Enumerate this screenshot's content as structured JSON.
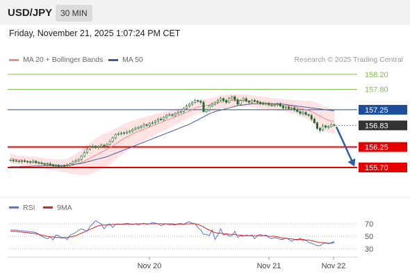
{
  "header": {
    "symbol": "USD/JPY",
    "timeframe": "30 MIN"
  },
  "datetime": "Friday, November 21, 2025 1:07:24 PM CET",
  "legend": {
    "bollinger_label": "MA 20 + Bollinger Bands",
    "ma50_label": "MA 50",
    "credit": "Research © 2025 Trading Central"
  },
  "rsi_legend": {
    "rsi_label": "RSI",
    "ma_label": "9MA"
  },
  "colors": {
    "bollinger": "#f08a8a",
    "bollinger_band": "#fde3e3",
    "ma50": "#3f5e99",
    "candle": "#1f6e2e",
    "resistance_green": "#7fbf4f",
    "current_price": "#333333",
    "support_red": "#e60000",
    "pivot_blue": "#1d4e9e",
    "arrow": "#2a5caa",
    "rsi": "#5577dd",
    "rsi_ma": "#dd2222"
  },
  "chart_data": [
    {
      "type": "candlestick",
      "symbol": "USD/JPY",
      "timeframe": "30 MIN",
      "ylim": [
        155.55,
        158.25
      ],
      "x_tick_labels": [
        "Nov 20",
        "Nov 21",
        "Nov 22"
      ],
      "price_levels": [
        {
          "value": 158.2,
          "label": "158.20",
          "role": "resistance"
        },
        {
          "value": 157.8,
          "label": "157.80",
          "role": "resistance"
        },
        {
          "value": 157.25,
          "label": "157.25",
          "role": "pivot"
        },
        {
          "value": 156.83,
          "label": "156.83",
          "role": "last_price"
        },
        {
          "value": 156.25,
          "label": "156.25",
          "role": "support"
        },
        {
          "value": 155.7,
          "label": "155.70",
          "role": "support"
        }
      ],
      "forecast_arrow": {
        "from": 156.83,
        "to": 155.7
      },
      "close_prices": [
        155.9,
        155.88,
        155.87,
        155.86,
        155.88,
        155.86,
        155.85,
        155.84,
        155.87,
        155.83,
        155.82,
        155.8,
        155.78,
        155.8,
        155.77,
        155.74,
        155.75,
        155.72,
        155.73,
        155.74,
        155.76,
        155.8,
        155.85,
        155.88,
        155.92,
        156.0,
        156.1,
        156.2,
        156.25,
        156.27,
        156.24,
        156.26,
        156.3,
        156.28,
        156.32,
        156.4,
        156.5,
        156.58,
        156.6,
        156.63,
        156.62,
        156.65,
        156.68,
        156.72,
        156.75,
        156.78,
        156.8,
        156.85,
        156.83,
        156.88,
        156.9,
        156.95,
        157.0,
        156.98,
        157.05,
        157.1,
        157.12,
        157.1,
        157.15,
        157.18,
        157.2,
        157.28,
        157.35,
        157.4,
        157.45,
        157.5,
        157.48,
        157.45,
        157.2,
        157.25,
        157.35,
        157.4,
        157.45,
        157.5,
        157.55,
        157.5,
        157.45,
        157.55,
        157.6,
        157.52,
        157.4,
        157.5,
        157.55,
        157.48,
        157.45,
        157.5,
        157.48,
        157.45,
        157.42,
        157.4,
        157.42,
        157.38,
        157.36,
        157.38,
        157.4,
        157.35,
        157.3,
        157.32,
        157.28,
        157.3,
        157.25,
        157.2,
        157.15,
        157.18,
        157.12,
        157.1,
        157.0,
        156.9,
        156.75,
        156.7,
        156.82,
        156.78,
        156.8,
        156.85,
        156.83
      ],
      "ma20": [
        155.95,
        155.93,
        155.91,
        155.9,
        155.89,
        155.88,
        155.87,
        155.86,
        155.85,
        155.84,
        155.83,
        155.82,
        155.81,
        155.8,
        155.79,
        155.78,
        155.77,
        155.76,
        155.75,
        155.75,
        155.75,
        155.76,
        155.77,
        155.79,
        155.81,
        155.84,
        155.87,
        155.91,
        155.95,
        155.99,
        156.03,
        156.07,
        156.11,
        156.15,
        156.19,
        156.23,
        156.28,
        156.33,
        156.38,
        156.43,
        156.48,
        156.52,
        156.56,
        156.6,
        156.64,
        156.67,
        156.7,
        156.73,
        156.76,
        156.79,
        156.82,
        156.85,
        156.88,
        156.91,
        156.94,
        156.97,
        157.0,
        157.03,
        157.06,
        157.09,
        157.12,
        157.15,
        157.18,
        157.21,
        157.25,
        157.29,
        157.32,
        157.34,
        157.35,
        157.36,
        157.38,
        157.4,
        157.42,
        157.44,
        157.46,
        157.47,
        157.48,
        157.49,
        157.5,
        157.5,
        157.5,
        157.5,
        157.5,
        157.5,
        157.49,
        157.48,
        157.47,
        157.46,
        157.45,
        157.44,
        157.43,
        157.42,
        157.41,
        157.4,
        157.39,
        157.38,
        157.37,
        157.36,
        157.35,
        157.34,
        157.33,
        157.31,
        157.29,
        157.27,
        157.25,
        157.23,
        157.2,
        157.16,
        157.12,
        157.08,
        157.04,
        157.0,
        156.97,
        156.95,
        156.93
      ],
      "ma50": [
        155.72,
        155.72,
        155.72,
        155.72,
        155.73,
        155.73,
        155.73,
        155.73,
        155.74,
        155.74,
        155.74,
        155.74,
        155.75,
        155.75,
        155.75,
        155.75,
        155.75,
        155.75,
        155.75,
        155.76,
        155.76,
        155.77,
        155.78,
        155.79,
        155.8,
        155.81,
        155.83,
        155.85,
        155.87,
        155.89,
        155.91,
        155.93,
        155.95,
        155.97,
        155.99,
        156.02,
        156.05,
        156.08,
        156.11,
        156.14,
        156.17,
        156.2,
        156.23,
        156.26,
        156.29,
        156.32,
        156.35,
        156.38,
        156.41,
        156.44,
        156.47,
        156.5,
        156.53,
        156.56,
        156.59,
        156.62,
        156.65,
        156.68,
        156.71,
        156.74,
        156.77,
        156.8,
        156.83,
        156.86,
        156.9,
        156.94,
        156.98,
        157.02,
        157.06,
        157.1,
        157.14,
        157.17,
        157.2,
        157.22,
        157.24,
        157.26,
        157.28,
        157.3,
        157.32,
        157.34,
        157.36,
        157.37,
        157.38,
        157.39,
        157.4,
        157.41,
        157.41,
        157.41,
        157.41,
        157.41,
        157.41,
        157.41,
        157.41,
        157.41,
        157.41,
        157.41,
        157.4,
        157.39,
        157.38,
        157.37,
        157.36,
        157.35,
        157.34,
        157.33,
        157.32,
        157.31,
        157.3,
        157.29,
        157.28,
        157.27,
        157.26,
        157.25,
        157.24,
        157.23,
        157.22
      ],
      "bollinger_half_width": [
        0.12,
        0.12,
        0.12,
        0.12,
        0.13,
        0.13,
        0.13,
        0.13,
        0.14,
        0.14,
        0.14,
        0.14,
        0.15,
        0.15,
        0.15,
        0.15,
        0.15,
        0.16,
        0.17,
        0.18,
        0.2,
        0.22,
        0.25,
        0.28,
        0.31,
        0.34,
        0.37,
        0.4,
        0.42,
        0.44,
        0.45,
        0.46,
        0.46,
        0.46,
        0.45,
        0.44,
        0.43,
        0.42,
        0.41,
        0.4,
        0.39,
        0.38,
        0.37,
        0.36,
        0.35,
        0.34,
        0.33,
        0.32,
        0.31,
        0.3,
        0.29,
        0.28,
        0.27,
        0.26,
        0.25,
        0.24,
        0.23,
        0.22,
        0.21,
        0.2,
        0.19,
        0.18,
        0.18,
        0.18,
        0.18,
        0.18,
        0.18,
        0.18,
        0.18,
        0.18,
        0.18,
        0.18,
        0.17,
        0.17,
        0.17,
        0.17,
        0.17,
        0.17,
        0.17,
        0.16,
        0.16,
        0.16,
        0.16,
        0.16,
        0.16,
        0.16,
        0.16,
        0.16,
        0.16,
        0.16,
        0.16,
        0.16,
        0.16,
        0.16,
        0.16,
        0.16,
        0.16,
        0.16,
        0.17,
        0.18,
        0.19,
        0.2,
        0.21,
        0.22,
        0.24,
        0.26,
        0.28,
        0.3,
        0.32,
        0.33,
        0.33,
        0.33,
        0.33,
        0.33,
        0.33
      ]
    },
    {
      "type": "line",
      "title": "RSI",
      "ylim": [
        20,
        80
      ],
      "y_ticks": [
        30,
        50,
        70
      ],
      "series": [
        {
          "name": "RSI",
          "values": [
            60,
            60,
            60,
            59,
            59,
            58,
            58,
            57,
            57,
            56,
            53,
            50,
            48,
            46,
            49,
            44,
            52,
            51,
            47,
            48,
            45,
            52,
            54,
            56,
            60,
            62,
            60,
            58,
            66,
            70,
            75,
            72,
            70,
            62,
            68,
            70,
            64,
            69,
            70,
            69,
            70,
            71,
            70,
            69,
            70,
            68,
            70,
            71,
            69,
            70,
            72,
            71,
            70,
            67,
            69,
            70,
            68,
            69,
            68,
            70,
            71,
            69,
            72,
            73,
            71,
            70,
            64,
            60,
            53,
            53,
            51,
            60,
            45,
            52,
            62,
            52,
            54,
            50,
            51,
            58,
            48,
            51,
            50,
            52,
            51,
            52,
            46,
            51,
            53,
            51,
            52,
            48,
            46,
            48,
            47,
            45,
            45,
            47,
            45,
            42,
            45,
            44,
            47,
            43,
            44,
            40,
            39,
            37,
            35,
            35,
            38,
            40,
            38,
            40,
            42
          ]
        },
        {
          "name": "9MA",
          "values": [
            58,
            58,
            58,
            57,
            57,
            56,
            56,
            55,
            55,
            54,
            53,
            52,
            51,
            50,
            49,
            49,
            48,
            48,
            48,
            48,
            48,
            49,
            50,
            51,
            53,
            55,
            57,
            59,
            61,
            63,
            65,
            67,
            68,
            68,
            68,
            68,
            69,
            69,
            69,
            69,
            69,
            69,
            69,
            69,
            70,
            70,
            70,
            70,
            70,
            70,
            70,
            70,
            70,
            70,
            70,
            70,
            70,
            70,
            69,
            69,
            69,
            69,
            70,
            70,
            70,
            70,
            69,
            67,
            65,
            62,
            60,
            58,
            56,
            55,
            55,
            54,
            54,
            53,
            53,
            53,
            52,
            52,
            51,
            51,
            51,
            51,
            51,
            51,
            51,
            51,
            51,
            50,
            50,
            50,
            49,
            48,
            47,
            47,
            46,
            46,
            45,
            45,
            45,
            45,
            44,
            44,
            43,
            42,
            41,
            40,
            40,
            39,
            39,
            39,
            40
          ]
        }
      ]
    }
  ]
}
